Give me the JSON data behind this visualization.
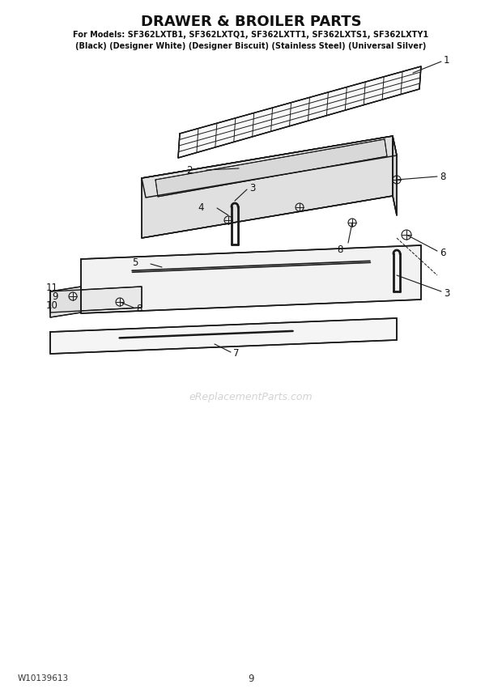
{
  "title": "DRAWER & BROILER PARTS",
  "subtitle1": "For Models: SF362LXTB1, SF362LXTQ1, SF362LXTT1, SF362LXTS1, SF362LXTY1",
  "subtitle2": "(Black) (Designer White) (Designer Biscuit) (Stainless Steel) (Universal Silver)",
  "footer_left": "W10139613",
  "footer_center": "9",
  "bg_color": "#ffffff",
  "line_color": "#1a1a1a",
  "watermark": "eReplacementParts.com"
}
